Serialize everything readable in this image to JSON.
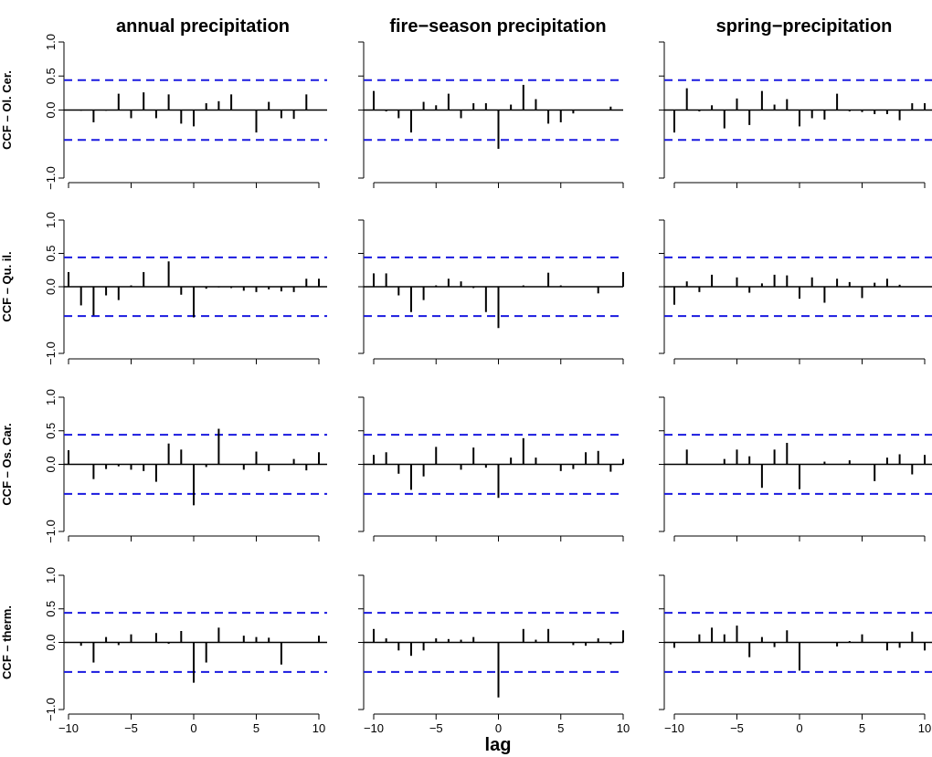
{
  "chart_data": {
    "type": "bar",
    "layout": "4x3 grid of cross-correlation panels",
    "column_titles": [
      "annual precipitation",
      "fire−season precipitation",
      "spring−precipitation"
    ],
    "row_labels": [
      "CCF – Ol. Cer.",
      "CCF – Qu. il.",
      "CCF – Os. Car.",
      "CCF – therm."
    ],
    "xlabel": "lag",
    "x": [
      -10,
      -9,
      -8,
      -7,
      -6,
      -5,
      -4,
      -3,
      -2,
      -1,
      0,
      1,
      2,
      3,
      4,
      5,
      6,
      7,
      8,
      9,
      10
    ],
    "xlim": [
      -10,
      10
    ],
    "ylim": [
      -1,
      1
    ],
    "x_ticks": [
      -10,
      -5,
      0,
      5,
      10
    ],
    "x_tick_labels": [
      "−10",
      "−5",
      "0",
      "5",
      "10"
    ],
    "y_ticks": [
      1.0,
      0.5,
      0.0,
      -1.0
    ],
    "y_tick_labels": [
      "1.0",
      "0.5",
      "0.0",
      "−1.0"
    ],
    "confidence_limit": 0.44,
    "colors": {
      "bars": "#000000",
      "confidence": "#1a1adf"
    },
    "panels": [
      [
        {
          "values": [
            0,
            -0.01,
            -0.18,
            -0.01,
            0.24,
            -0.12,
            0.26,
            -0.12,
            0.23,
            -0.2,
            -0.24,
            0.1,
            0.13,
            0.23,
            0.0,
            -0.33,
            0.12,
            -0.12,
            -0.13,
            0.23,
            0
          ]
        },
        {
          "values": [
            0.28,
            -0.02,
            -0.12,
            -0.33,
            0.12,
            0.07,
            0.24,
            -0.12,
            0.1,
            0.1,
            -0.57,
            0.08,
            0.37,
            0.16,
            -0.2,
            -0.18,
            -0.05,
            0.0,
            0.0,
            0.05,
            0
          ]
        },
        {
          "values": [
            -0.33,
            0.32,
            -0.02,
            0.07,
            -0.27,
            0.17,
            -0.22,
            0.28,
            0.08,
            0.16,
            -0.24,
            -0.12,
            -0.14,
            0.24,
            -0.02,
            -0.03,
            -0.06,
            -0.06,
            -0.15,
            0.1,
            0.1
          ]
        }
      ],
      [
        {
          "values": [
            0.22,
            -0.28,
            -0.43,
            -0.13,
            -0.2,
            0.02,
            0.22,
            0.0,
            0.38,
            -0.12,
            -0.46,
            -0.03,
            -0.01,
            -0.02,
            -0.06,
            -0.08,
            -0.04,
            -0.07,
            -0.08,
            0.12,
            0.12
          ]
        },
        {
          "values": [
            0.2,
            0.2,
            -0.13,
            -0.38,
            -0.2,
            0.02,
            0.12,
            0.08,
            -0.02,
            -0.38,
            -0.62,
            0.0,
            0.02,
            0.0,
            0.21,
            0.02,
            0.0,
            0.0,
            -0.1,
            0.0,
            0.22
          ]
        },
        {
          "values": [
            -0.27,
            0.08,
            -0.08,
            0.18,
            0.0,
            0.14,
            -0.09,
            0.05,
            0.18,
            0.17,
            -0.18,
            0.14,
            -0.24,
            0.12,
            0.07,
            -0.17,
            0.06,
            0.12,
            0.03,
            0.0,
            0
          ]
        }
      ],
      [
        {
          "values": [
            0.21,
            0.0,
            -0.22,
            -0.07,
            -0.03,
            -0.08,
            -0.1,
            -0.26,
            0.31,
            0.22,
            -0.61,
            -0.04,
            0.53,
            0.0,
            -0.08,
            0.19,
            -0.1,
            0.0,
            0.08,
            -0.09,
            0.18
          ]
        },
        {
          "values": [
            0.14,
            0.18,
            -0.14,
            -0.38,
            -0.18,
            0.26,
            0.0,
            -0.08,
            0.25,
            -0.05,
            -0.5,
            0.1,
            0.39,
            0.1,
            0.0,
            -0.1,
            -0.07,
            0.18,
            0.2,
            -0.11,
            0.08
          ]
        },
        {
          "values": [
            0.0,
            0.22,
            0.0,
            0.0,
            0.08,
            0.22,
            0.12,
            -0.35,
            0.22,
            0.32,
            -0.37,
            0.0,
            0.04,
            0.0,
            0.06,
            0.0,
            -0.25,
            0.1,
            0.15,
            -0.15,
            0.14
          ]
        }
      ],
      [
        {
          "values": [
            0.0,
            -0.05,
            -0.3,
            0.08,
            -0.04,
            0.12,
            0.0,
            0.14,
            -0.02,
            0.17,
            -0.6,
            -0.3,
            0.22,
            0.0,
            0.1,
            0.08,
            0.07,
            -0.33,
            0.0,
            0.0,
            0.1
          ]
        },
        {
          "values": [
            0.2,
            0.06,
            -0.12,
            -0.2,
            -0.12,
            0.06,
            0.05,
            0.04,
            0.08,
            0.0,
            -0.82,
            0.0,
            0.2,
            0.04,
            0.2,
            0.0,
            -0.04,
            -0.05,
            0.06,
            -0.03,
            0.18
          ]
        },
        {
          "values": [
            -0.08,
            0.0,
            0.12,
            0.22,
            0.12,
            0.25,
            -0.22,
            0.08,
            -0.07,
            0.18,
            -0.42,
            0.0,
            0.0,
            -0.06,
            0.02,
            0.12,
            0.0,
            -0.12,
            -0.08,
            0.16,
            -0.12
          ]
        }
      ]
    ]
  }
}
